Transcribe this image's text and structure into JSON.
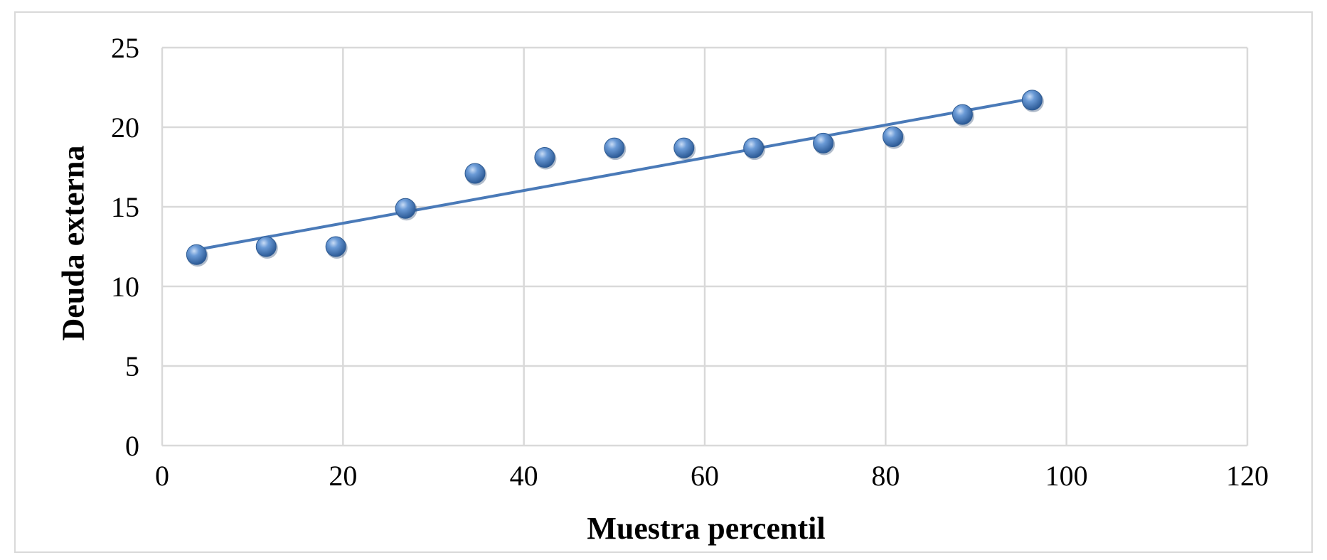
{
  "chart_data": {
    "type": "scatter",
    "title": "",
    "xlabel": "Muestra percentil",
    "ylabel": "Deuda externa",
    "xlim": [
      0,
      120
    ],
    "ylim": [
      0,
      25
    ],
    "xticks": [
      0,
      20,
      40,
      60,
      80,
      100,
      120
    ],
    "yticks": [
      0,
      5,
      10,
      15,
      20,
      25
    ],
    "grid": true,
    "legend": "none",
    "series": [
      {
        "x": [
          3.8,
          11.5,
          19.2,
          26.9,
          34.6,
          42.3,
          50.0,
          57.7,
          65.4,
          73.1,
          80.8,
          88.5,
          96.2
        ],
        "y": [
          12.0,
          12.5,
          12.5,
          14.9,
          17.1,
          18.1,
          18.7,
          18.7,
          18.7,
          19.0,
          19.4,
          20.8,
          21.7
        ],
        "marker_color": "#4a7ab8"
      }
    ],
    "trendline": {
      "type": "linear",
      "x": [
        3.8,
        96.2
      ],
      "y": [
        12.3,
        21.8
      ],
      "color": "#4a7ab8"
    }
  }
}
